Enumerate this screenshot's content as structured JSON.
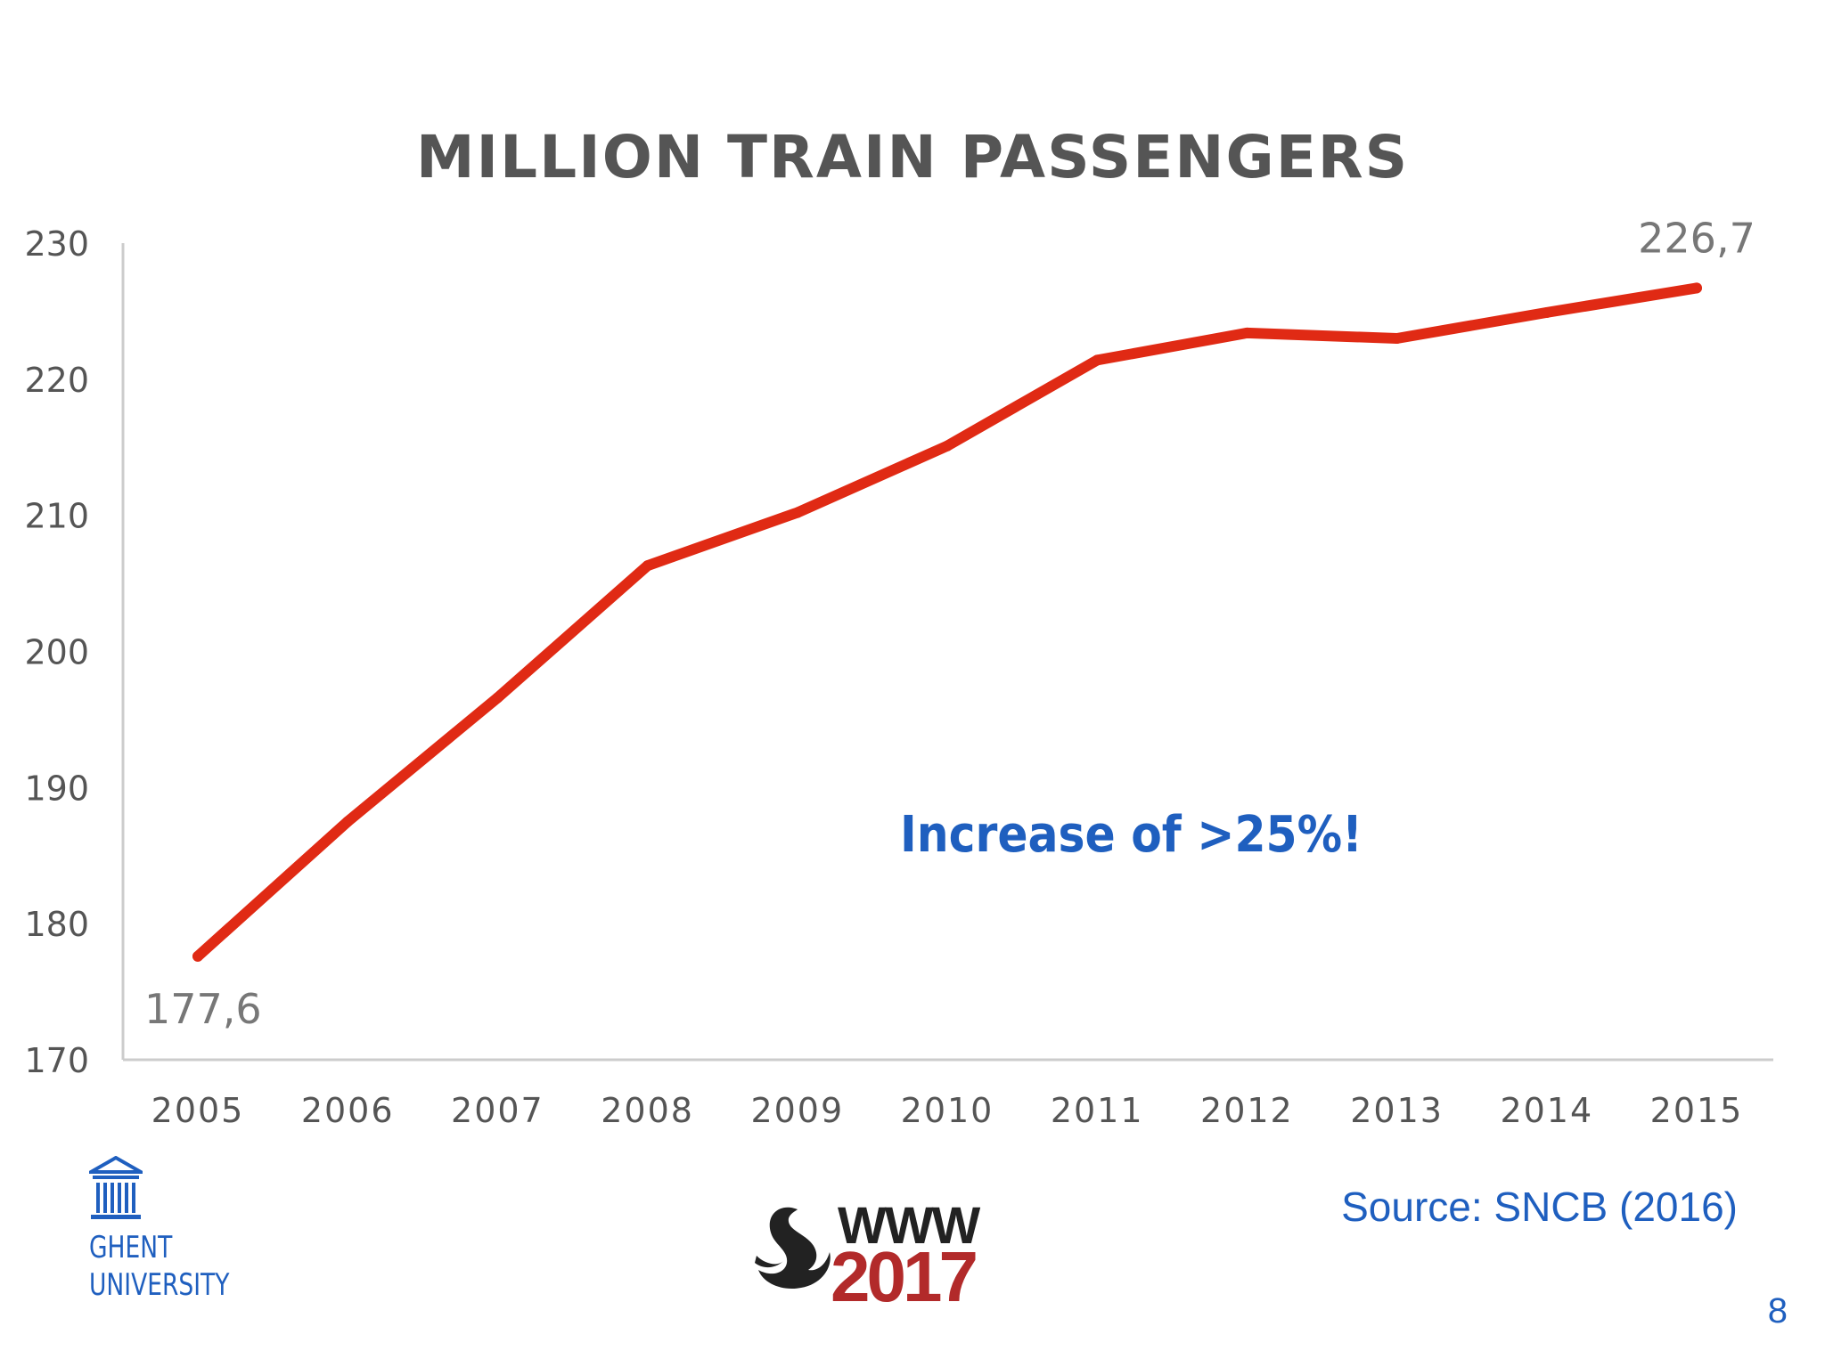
{
  "slide": {
    "annotation": "Increase of >25%!",
    "source": "Source: SNCB (2016)",
    "page_number": "8"
  },
  "logos": {
    "ghent_line1": "GHENT",
    "ghent_line2": "UNIVERSITY",
    "www_text": "WWW",
    "www_year": "2017"
  },
  "colors": {
    "line": "#e02a14",
    "axis": "#cccccc",
    "tick_text": "#555555",
    "accent": "#1f5fbf"
  },
  "chart_data": {
    "type": "line",
    "title": "MILLION TRAIN PASSENGERS",
    "xlabel": "",
    "ylabel": "",
    "categories": [
      "2005",
      "2006",
      "2007",
      "2008",
      "2009",
      "2010",
      "2011",
      "2012",
      "2013",
      "2014",
      "2015"
    ],
    "series": [
      {
        "values": [
          177.6,
          187.5,
          196.6,
          206.3,
          210.2,
          215.1,
          221.4,
          223.4,
          223.0,
          224.9,
          226.7
        ]
      }
    ],
    "ylim": [
      170,
      230
    ],
    "yticks": [
      "170",
      "180",
      "190",
      "200",
      "210",
      "220",
      "230"
    ],
    "data_labels": [
      {
        "index": 0,
        "text": "177,6"
      },
      {
        "index": 10,
        "text": "226,7"
      }
    ],
    "grid": false,
    "legend": "none"
  }
}
